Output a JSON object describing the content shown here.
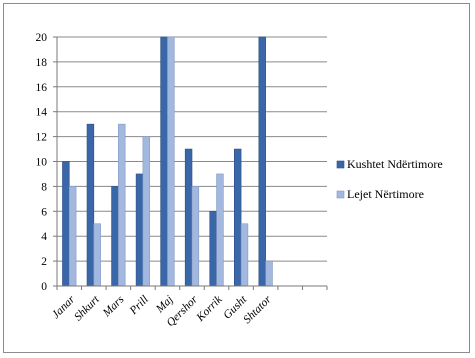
{
  "chart_data": {
    "type": "bar",
    "categories": [
      "Janar",
      "Shkurt",
      "Mars",
      "Prill",
      "Maj",
      "Qershor",
      "Korrik",
      "Gusht",
      "Shtator",
      "",
      ""
    ],
    "series": [
      {
        "name": "Kushtet Ndërtimore",
        "values": [
          10,
          13,
          8,
          9,
          20,
          11,
          6,
          11,
          20,
          null,
          null
        ],
        "color": "#3a67a8"
      },
      {
        "name": "Lejet Nërtimore",
        "values": [
          8,
          5,
          13,
          12,
          20,
          8,
          9,
          5,
          2,
          null,
          null
        ],
        "color": "#a3b8de"
      }
    ],
    "yticks": [
      0,
      2,
      4,
      6,
      8,
      10,
      12,
      14,
      16,
      18,
      20
    ],
    "ylim": [
      0,
      20
    ],
    "grid": true,
    "legend_position": "right",
    "title": "",
    "xlabel": "",
    "ylabel": ""
  }
}
